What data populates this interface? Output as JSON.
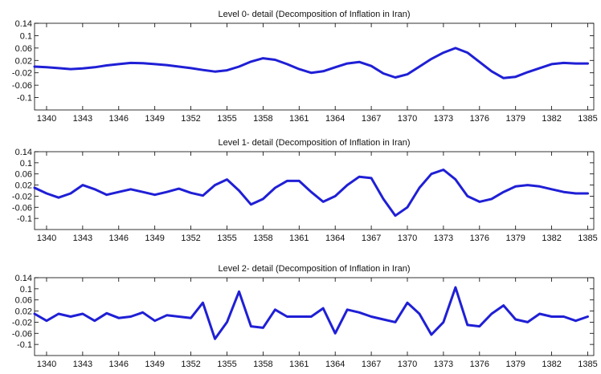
{
  "colors": {
    "series": "#1f1fd6"
  },
  "chart_data": [
    {
      "type": "line",
      "title": "Level 0- detail (Decomposition of Inflation in Iran)",
      "xlim": [
        1339,
        1385.5
      ],
      "ylim": [
        -0.14,
        0.14
      ],
      "xticks": [
        1340,
        1343,
        1346,
        1349,
        1352,
        1355,
        1358,
        1361,
        1364,
        1367,
        1370,
        1373,
        1376,
        1379,
        1382,
        1385
      ],
      "yticks": [
        "0.14",
        "0.1",
        "0.06",
        "0.02",
        "-0.02",
        "-0.06",
        "-0.1"
      ],
      "ytick_values": [
        0.14,
        0.1,
        0.06,
        0.02,
        -0.02,
        -0.06,
        -0.1
      ],
      "series": [
        {
          "x": [
            1339,
            1340,
            1341,
            1342,
            1343,
            1344,
            1345,
            1346,
            1347,
            1348,
            1349,
            1350,
            1351,
            1352,
            1353,
            1354,
            1355,
            1356,
            1357,
            1358,
            1359,
            1360,
            1361,
            1362,
            1363,
            1364,
            1365,
            1366,
            1367,
            1368,
            1369,
            1370,
            1371,
            1372,
            1373,
            1374,
            1375,
            1376,
            1377,
            1378,
            1379,
            1380,
            1381,
            1382,
            1383,
            1384,
            1385
          ],
          "values": [
            0.0,
            -0.002,
            -0.005,
            -0.008,
            -0.006,
            -0.002,
            0.004,
            0.008,
            0.012,
            0.011,
            0.008,
            0.005,
            0.0,
            -0.005,
            -0.011,
            -0.016,
            -0.012,
            0.0,
            0.016,
            0.027,
            0.022,
            0.008,
            -0.008,
            -0.02,
            -0.015,
            -0.002,
            0.01,
            0.015,
            0.002,
            -0.022,
            -0.035,
            -0.025,
            0.0,
            0.025,
            0.045,
            0.06,
            0.045,
            0.015,
            -0.015,
            -0.037,
            -0.033,
            -0.018,
            -0.005,
            0.008,
            0.012,
            0.01,
            0.01
          ]
        }
      ]
    },
    {
      "type": "line",
      "title": "Level 1- detail (Decomposition of Inflation in Iran)",
      "xlim": [
        1339,
        1385.5
      ],
      "ylim": [
        -0.14,
        0.14
      ],
      "xticks": [
        1340,
        1343,
        1346,
        1349,
        1352,
        1355,
        1358,
        1361,
        1364,
        1367,
        1370,
        1373,
        1376,
        1379,
        1382,
        1385
      ],
      "yticks": [
        "0.14",
        "0.1",
        "0.06",
        "0.02",
        "-0.02",
        "-0.06",
        "-0.1"
      ],
      "ytick_values": [
        0.14,
        0.1,
        0.06,
        0.02,
        -0.02,
        -0.06,
        -0.1
      ],
      "series": [
        {
          "x": [
            1339,
            1340,
            1341,
            1342,
            1343,
            1344,
            1345,
            1346,
            1347,
            1348,
            1349,
            1350,
            1351,
            1352,
            1353,
            1354,
            1355,
            1356,
            1357,
            1358,
            1359,
            1360,
            1361,
            1362,
            1363,
            1364,
            1365,
            1366,
            1367,
            1368,
            1369,
            1370,
            1371,
            1372,
            1373,
            1374,
            1375,
            1376,
            1377,
            1378,
            1379,
            1380,
            1381,
            1382,
            1383,
            1384,
            1385
          ],
          "values": [
            0.01,
            -0.01,
            -0.025,
            -0.01,
            0.02,
            0.005,
            -0.015,
            -0.005,
            0.005,
            -0.005,
            -0.015,
            -0.005,
            0.007,
            -0.008,
            -0.018,
            0.02,
            0.04,
            0.0,
            -0.05,
            -0.03,
            0.01,
            0.035,
            0.035,
            -0.005,
            -0.04,
            -0.02,
            0.02,
            0.05,
            0.045,
            -0.03,
            -0.09,
            -0.06,
            0.01,
            0.06,
            0.075,
            0.04,
            -0.02,
            -0.04,
            -0.03,
            -0.005,
            0.015,
            0.02,
            0.015,
            0.005,
            -0.005,
            -0.01,
            -0.01
          ]
        }
      ]
    },
    {
      "type": "line",
      "title": "Level 2- detail (Decomposition of Inflation in Iran)",
      "xlim": [
        1339,
        1385.5
      ],
      "ylim": [
        -0.14,
        0.14
      ],
      "xticks": [
        1340,
        1343,
        1346,
        1349,
        1352,
        1355,
        1358,
        1361,
        1364,
        1367,
        1370,
        1373,
        1376,
        1379,
        1382,
        1385
      ],
      "yticks": [
        "0.14",
        "0.1",
        "0.06",
        "0.02",
        "-0.02",
        "-0.06",
        "-0.1"
      ],
      "ytick_values": [
        0.14,
        0.1,
        0.06,
        0.02,
        -0.02,
        -0.06,
        -0.1
      ],
      "series": [
        {
          "x": [
            1339,
            1340,
            1341,
            1342,
            1343,
            1344,
            1345,
            1346,
            1347,
            1348,
            1349,
            1350,
            1351,
            1352,
            1353,
            1354,
            1355,
            1356,
            1357,
            1358,
            1359,
            1360,
            1361,
            1362,
            1363,
            1364,
            1365,
            1366,
            1367,
            1368,
            1369,
            1370,
            1371,
            1372,
            1373,
            1374,
            1375,
            1376,
            1377,
            1378,
            1379,
            1380,
            1381,
            1382,
            1383,
            1384,
            1385
          ],
          "values": [
            0.01,
            -0.015,
            0.01,
            0.0,
            0.01,
            -0.015,
            0.012,
            -0.005,
            0.0,
            0.015,
            -0.015,
            0.005,
            0.0,
            -0.005,
            0.05,
            -0.08,
            -0.02,
            0.09,
            -0.035,
            -0.04,
            0.025,
            0.0,
            0.0,
            0.0,
            0.03,
            -0.06,
            0.025,
            0.015,
            0.0,
            -0.01,
            -0.02,
            0.05,
            0.01,
            -0.065,
            -0.02,
            0.105,
            -0.03,
            -0.035,
            0.01,
            0.04,
            -0.01,
            -0.02,
            0.01,
            0.0,
            0.0,
            -0.015,
            0.0
          ]
        }
      ]
    }
  ]
}
